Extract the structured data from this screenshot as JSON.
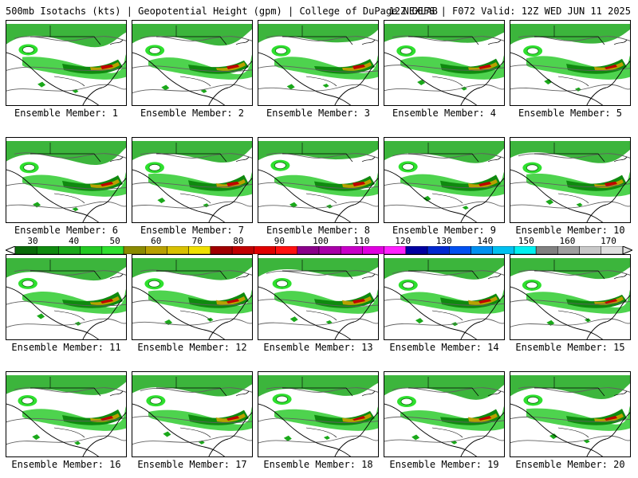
{
  "header": {
    "title": "500mb Isotachs (kts) | Geopotential Height (gpm) | College of DuPage NEXLAB",
    "run_info": "12Z GEFS | F072 Valid: 12Z WED JUN 11 2025"
  },
  "panels": [
    {
      "label": "Ensemble Member: 1"
    },
    {
      "label": "Ensemble Member: 2"
    },
    {
      "label": "Ensemble Member: 3"
    },
    {
      "label": "Ensemble Member: 4"
    },
    {
      "label": "Ensemble Member: 5"
    },
    {
      "label": "Ensemble Member: 6"
    },
    {
      "label": "Ensemble Member: 7"
    },
    {
      "label": "Ensemble Member: 8"
    },
    {
      "label": "Ensemble Member: 9"
    },
    {
      "label": "Ensemble Member: 10"
    },
    {
      "label": "Ensemble Member: 11"
    },
    {
      "label": "Ensemble Member: 12"
    },
    {
      "label": "Ensemble Member: 13"
    },
    {
      "label": "Ensemble Member: 14"
    },
    {
      "label": "Ensemble Member: 15"
    },
    {
      "label": "Ensemble Member: 16"
    },
    {
      "label": "Ensemble Member: 17"
    },
    {
      "label": "Ensemble Member: 18"
    },
    {
      "label": "Ensemble Member: 19"
    },
    {
      "label": "Ensemble Member: 20"
    }
  ],
  "colorbar": {
    "ticks": [
      "30",
      "40",
      "50",
      "60",
      "70",
      "80",
      "90",
      "100",
      "110",
      "120",
      "130",
      "140",
      "150",
      "160",
      "170"
    ],
    "colors": [
      "#0a6a0a",
      "#0f8a0f",
      "#1aa81a",
      "#22c822",
      "#2ee02e",
      "#8a8a00",
      "#b8a000",
      "#d8c000",
      "#f0e000",
      "#a00000",
      "#c00000",
      "#e00000",
      "#ff1010",
      "#8a008a",
      "#a800a8",
      "#c800c8",
      "#e000e0",
      "#ff20ff",
      "#0000a0",
      "#0028d0",
      "#0050f0",
      "#0090f0",
      "#00c0f0",
      "#00f0f0",
      "#808080",
      "#a0a0a0",
      "#c8c8c8",
      "#e0e0e0"
    ]
  }
}
